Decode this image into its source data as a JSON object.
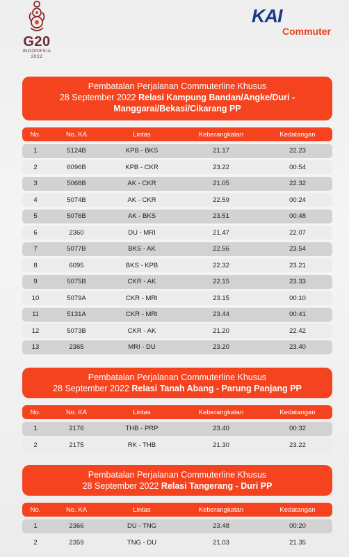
{
  "logos": {
    "g20": "G20",
    "g20_sub": "INDONESIA",
    "g20_year": "2022",
    "kai_brand": "KAI",
    "kai_sub": "Commuter"
  },
  "columns": {
    "no": "No.",
    "ka": "No. KA",
    "lintas": "Lintas",
    "dep": "Keberangkatan",
    "arr": "Kedatangan"
  },
  "sections": [
    {
      "title_line1": "Pembatalan Perjalanan Commuterline Khusus",
      "title_date": "28 September 2022",
      "title_bold": "Relasi Kampung Bandan/Angke/Duri -",
      "title_line3": "Manggarai/Bekasi/Cikarang PP",
      "rows": [
        {
          "no": "1",
          "ka": "5124B",
          "lintas": "KPB - BKS",
          "dep": "21.17",
          "arr": "22.23"
        },
        {
          "no": "2",
          "ka": "6096B",
          "lintas": "KPB - CKR",
          "dep": "23.22",
          "arr": "00:54"
        },
        {
          "no": "3",
          "ka": "5068B",
          "lintas": "AK - CKR",
          "dep": "21.05",
          "arr": "22.32"
        },
        {
          "no": "4",
          "ka": "5074B",
          "lintas": "AK - CKR",
          "dep": "22.59",
          "arr": "00:24"
        },
        {
          "no": "5",
          "ka": "5076B",
          "lintas": "AK - BKS",
          "dep": "23.51",
          "arr": "00:48"
        },
        {
          "no": "6",
          "ka": "2360",
          "lintas": "DU - MRI",
          "dep": "21.47",
          "arr": "22.07"
        },
        {
          "no": "7",
          "ka": "5077B",
          "lintas": "BKS - AK",
          "dep": "22.56",
          "arr": "23.54"
        },
        {
          "no": "8",
          "ka": "6095",
          "lintas": "BKS - KPB",
          "dep": "22.32",
          "arr": "23.21"
        },
        {
          "no": "9",
          "ka": "5075B",
          "lintas": "CKR - AK",
          "dep": "22.15",
          "arr": "23.33"
        },
        {
          "no": "10",
          "ka": "5079A",
          "lintas": "CKR - MRI",
          "dep": "23.15",
          "arr": "00:10"
        },
        {
          "no": "11",
          "ka": "5131A",
          "lintas": "CKR - MRI",
          "dep": "23.44",
          "arr": "00:41"
        },
        {
          "no": "12",
          "ka": "5073B",
          "lintas": "CKR - AK",
          "dep": "21.20",
          "arr": "22.42"
        },
        {
          "no": "13",
          "ka": "2365",
          "lintas": "MRI - DU",
          "dep": "23.20",
          "arr": "23.40"
        }
      ]
    },
    {
      "title_line1": "Pembatalan Perjalanan Commuterline Khusus",
      "title_date": "28 September 2022",
      "title_bold": "Relasi Tanah Abang - Parung Panjang PP",
      "rows": [
        {
          "no": "1",
          "ka": "2176",
          "lintas": "THB - PRP",
          "dep": "23.40",
          "arr": "00:32"
        },
        {
          "no": "2",
          "ka": "2175",
          "lintas": "RK - THB",
          "dep": "21.30",
          "arr": "23.22"
        }
      ]
    },
    {
      "title_line1": "Pembatalan Perjalanan Commuterline Khusus",
      "title_date": "28 September 2022",
      "title_bold": "Relasi Tangerang - Duri PP",
      "rows": [
        {
          "no": "1",
          "ka": "2366",
          "lintas": "DU - TNG",
          "dep": "23.48",
          "arr": "00:20"
        },
        {
          "no": "2",
          "ka": "2359",
          "lintas": "TNG - DU",
          "dep": "21.03",
          "arr": "21.35"
        }
      ]
    }
  ]
}
